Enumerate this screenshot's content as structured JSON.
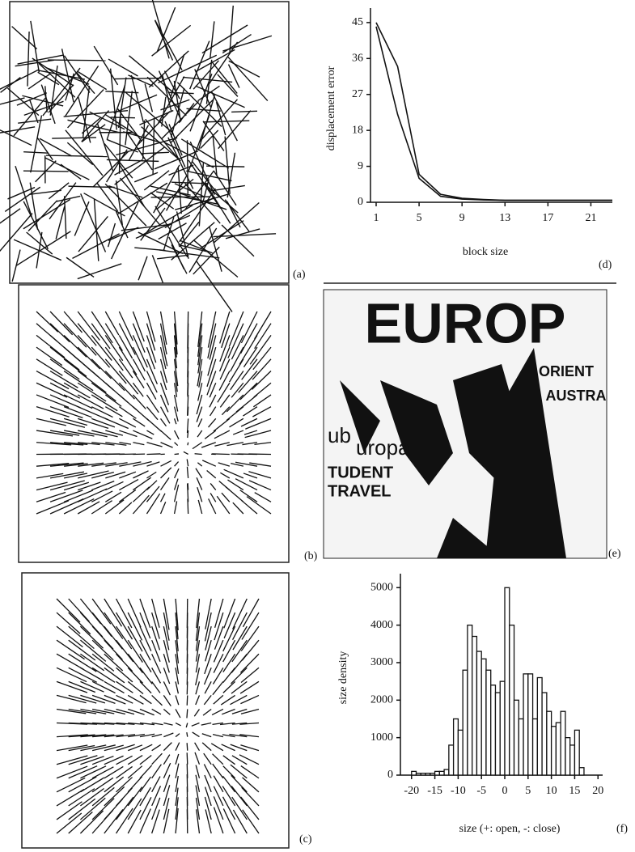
{
  "panel_labels": [
    "(a)",
    "(b)",
    "(c)",
    "(d)",
    "(e)",
    "(f)"
  ],
  "image_text": [
    "EUROP",
    "ORIENT",
    "AUSTRA",
    "ub",
    "uropa",
    "TUDENT",
    "TRAVEL"
  ],
  "chart_data": [
    {
      "type": "line",
      "xlabel": "block size",
      "ylabel": "displacement error",
      "x": [
        1,
        3,
        5,
        7,
        9,
        11,
        13,
        15,
        17,
        19,
        21,
        23
      ],
      "series": [
        {
          "color": "#111111",
          "values": [
            45,
            34,
            7,
            2,
            1,
            0.7,
            0.5,
            0.5,
            0.5,
            0.5,
            0.5,
            0.5
          ]
        },
        {
          "color": "#111111",
          "values": [
            44,
            22,
            6,
            1.5,
            0.8,
            0.6,
            0.5,
            0.5,
            0.5,
            0.5,
            0.5,
            0.5
          ]
        }
      ],
      "xlim": [
        1,
        23
      ],
      "xticks": [
        1,
        5,
        9,
        13,
        17,
        21
      ],
      "ylim": [
        0,
        47
      ],
      "yticks": [
        0,
        9,
        18,
        27,
        36,
        45
      ]
    },
    {
      "type": "histogram",
      "xlabel": "size (+: open, -: close)",
      "ylabel": "size density",
      "bins": [
        -20,
        -19,
        -18,
        -17,
        -16,
        -15,
        -14,
        -13,
        -12,
        -11,
        -10,
        -9,
        -8,
        -7,
        -6,
        -5,
        -4,
        -3,
        -2,
        -1,
        0,
        1,
        2,
        3,
        4,
        5,
        6,
        7,
        8,
        9,
        10,
        11,
        12,
        13,
        14,
        15,
        16,
        17
      ],
      "counts": [
        100,
        50,
        50,
        50,
        50,
        100,
        100,
        150,
        800,
        1500,
        1200,
        2800,
        4000,
        3700,
        3300,
        3100,
        2800,
        2400,
        2200,
        2500,
        5000,
        4000,
        2000,
        1500,
        2700,
        2700,
        1500,
        2600,
        2200,
        1700,
        1300,
        1400,
        1700,
        1000,
        800,
        1200,
        200
      ],
      "color": "#111111",
      "xlim": [
        -21,
        21
      ],
      "xticks": [
        -20,
        -15,
        -10,
        -5,
        0,
        5,
        10,
        15,
        20
      ],
      "ylim": [
        0,
        5200
      ],
      "yticks": [
        0,
        1000,
        2000,
        3000,
        4000,
        5000
      ]
    }
  ]
}
